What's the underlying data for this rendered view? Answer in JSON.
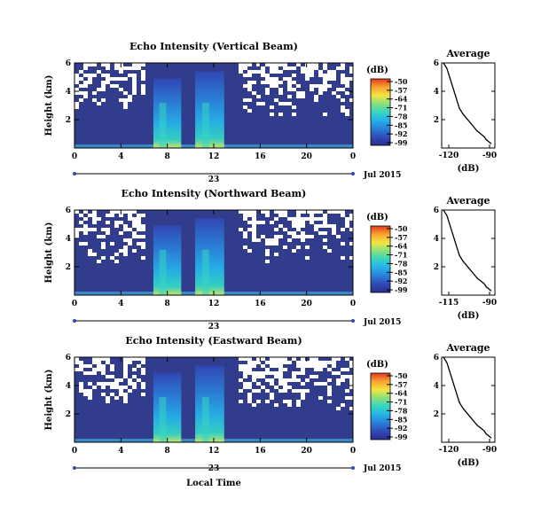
{
  "chart_data": [
    {
      "type": "heatmap",
      "title": "Echo Intensity (Vertical Beam)",
      "xlabel": "",
      "ylabel": "Height (km)",
      "xlim": [
        0,
        24
      ],
      "ylim": [
        0,
        6
      ],
      "xticks": [
        "0",
        "4",
        "8",
        "12",
        "16",
        "20",
        "0"
      ],
      "yticks": [
        "2",
        "4",
        "6"
      ],
      "date_day": "23",
      "date_label": "Jul 2015",
      "colorbar": {
        "unit": "(dB)",
        "ticks": [
          "-50",
          "-57",
          "-64",
          "-71",
          "-78",
          "-85",
          "-92",
          "-99"
        ]
      }
    },
    {
      "type": "line",
      "title": "Average",
      "xlabel": "(dB)",
      "xlim": [
        -120,
        -90
      ],
      "ylim": [
        0,
        6
      ],
      "xticks": [
        "-120",
        "-90"
      ],
      "yticks": [
        "2",
        "4",
        "6"
      ],
      "series": [
        {
          "x": [
            -119,
            -117,
            -116,
            -115,
            -114,
            -113,
            -112,
            -111,
            -110,
            -108,
            -106,
            -104,
            -102,
            -100,
            -98,
            -96,
            -95,
            -93,
            -92
          ],
          "y": [
            6.0,
            5.6,
            5.2,
            4.8,
            4.4,
            4.0,
            3.6,
            3.2,
            2.8,
            2.4,
            2.1,
            1.8,
            1.5,
            1.2,
            1.0,
            0.8,
            0.6,
            0.4,
            0.3
          ]
        }
      ]
    },
    {
      "type": "heatmap",
      "title": "Echo Intensity (Northward Beam)",
      "xlabel": "",
      "ylabel": "Height (km)",
      "xlim": [
        0,
        24
      ],
      "ylim": [
        0,
        6
      ],
      "xticks": [
        "0",
        "4",
        "8",
        "12",
        "16",
        "20",
        "0"
      ],
      "yticks": [
        "2",
        "4",
        "6"
      ],
      "date_day": "23",
      "date_label": "Jul 2015",
      "colorbar": {
        "unit": "(dB)",
        "ticks": [
          "-50",
          "-57",
          "-64",
          "-71",
          "-78",
          "-85",
          "-92",
          "-99"
        ]
      }
    },
    {
      "type": "line",
      "title": "Average",
      "xlabel": "(dB)",
      "xlim": [
        -120,
        -90
      ],
      "ylim": [
        0,
        6
      ],
      "xticks": [
        "-115",
        "-90"
      ],
      "yticks": [
        "2",
        "4",
        "6"
      ],
      "series": [
        {
          "x": [
            -119,
            -117,
            -116,
            -115,
            -114,
            -113,
            -112,
            -111,
            -110,
            -108,
            -106,
            -104,
            -102,
            -100,
            -98,
            -96,
            -95,
            -93,
            -92
          ],
          "y": [
            6.0,
            5.6,
            5.2,
            4.8,
            4.4,
            4.0,
            3.6,
            3.2,
            2.8,
            2.4,
            2.1,
            1.8,
            1.5,
            1.2,
            1.0,
            0.8,
            0.6,
            0.4,
            0.3
          ]
        }
      ]
    },
    {
      "type": "heatmap",
      "title": "Echo Intensity (Eastward Beam)",
      "xlabel": "Local Time",
      "ylabel": "Height (km)",
      "xlim": [
        0,
        24
      ],
      "ylim": [
        0,
        6
      ],
      "xticks": [
        "0",
        "4",
        "8",
        "12",
        "16",
        "20",
        "0"
      ],
      "yticks": [
        "2",
        "4",
        "6"
      ],
      "date_day": "23",
      "date_label": "Jul 2015",
      "colorbar": {
        "unit": "(dB)",
        "ticks": [
          "-50",
          "-57",
          "-64",
          "-71",
          "-78",
          "-85",
          "-92",
          "-99"
        ]
      }
    },
    {
      "type": "line",
      "title": "Average",
      "xlabel": "(dB)",
      "xlim": [
        -120,
        -90
      ],
      "ylim": [
        0,
        6
      ],
      "xticks": [
        "-120",
        "-90"
      ],
      "yticks": [
        "2",
        "4",
        "6"
      ],
      "series": [
        {
          "x": [
            -119,
            -117,
            -116,
            -115,
            -114,
            -113,
            -112,
            -111,
            -110,
            -108,
            -106,
            -104,
            -102,
            -100,
            -98,
            -96,
            -95,
            -93,
            -92
          ],
          "y": [
            6.0,
            5.6,
            5.2,
            4.8,
            4.4,
            4.0,
            3.6,
            3.2,
            2.8,
            2.4,
            2.1,
            1.8,
            1.5,
            1.2,
            1.0,
            0.8,
            0.6,
            0.4,
            0.3
          ]
        }
      ]
    }
  ],
  "colors": {
    "background_field": "#323c8c",
    "scale": [
      "#2a2f8a",
      "#3048b4",
      "#2a7fd8",
      "#25b3e8",
      "#35d6c2",
      "#8de07a",
      "#f3e640",
      "#f9a030",
      "#e23a20"
    ]
  }
}
